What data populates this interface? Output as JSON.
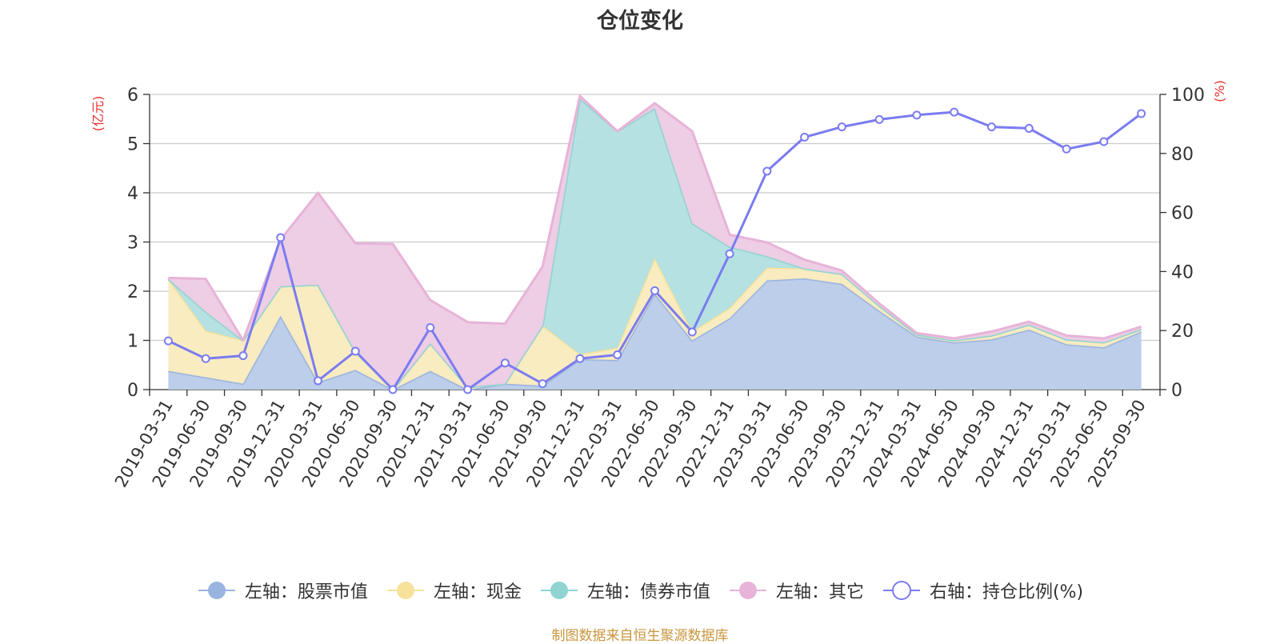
{
  "chart_data": {
    "type": "area",
    "title": "仓位变化",
    "left_axis_label": "(亿元)",
    "right_axis_label": "(%)",
    "ylim_left": [
      0,
      6
    ],
    "ylim_right": [
      0,
      100
    ],
    "yticks_left": [
      "0",
      "1",
      "2",
      "3",
      "4",
      "5",
      "6"
    ],
    "yticks_right": [
      "0",
      "20",
      "40",
      "60",
      "80",
      "100"
    ],
    "grid": true,
    "legend_position": "bottom",
    "categories": [
      "2019-03-31",
      "2019-06-30",
      "2019-09-30",
      "2019-12-31",
      "2020-03-31",
      "2020-06-30",
      "2020-09-30",
      "2020-12-31",
      "2021-03-31",
      "2021-06-30",
      "2021-09-30",
      "2021-12-31",
      "2022-03-31",
      "2022-06-30",
      "2022-09-30",
      "2022-12-31",
      "2023-03-31",
      "2023-06-30",
      "2023-09-30",
      "2023-12-31",
      "2024-03-31",
      "2024-06-30",
      "2024-09-30",
      "2024-12-31",
      "2025-03-31",
      "2025-06-30",
      "2025-09-30"
    ],
    "series": [
      {
        "name": "左轴：股票市值",
        "axis": "left",
        "kind": "stacked-area",
        "color": "#9ab4e0",
        "fill": "#b8cbe8",
        "values": [
          0.38,
          0.25,
          0.12,
          1.5,
          0.15,
          0.4,
          0.0,
          0.38,
          0.0,
          0.12,
          0.08,
          0.62,
          0.6,
          1.95,
          1.0,
          1.45,
          2.22,
          2.26,
          2.15,
          1.6,
          1.08,
          0.96,
          1.02,
          1.22,
          0.92,
          0.86,
          1.18
        ]
      },
      {
        "name": "左轴：现金",
        "axis": "left",
        "kind": "stacked-area",
        "color": "#f7e29c",
        "fill": "#f9ebbe",
        "values": [
          1.87,
          0.95,
          0.88,
          0.6,
          1.98,
          0.37,
          0.0,
          0.56,
          0.05,
          0.0,
          1.22,
          0.1,
          0.25,
          0.72,
          0.18,
          0.21,
          0.26,
          0.2,
          0.2,
          0.1,
          0.04,
          0.04,
          0.08,
          0.1,
          0.1,
          0.1,
          0.05
        ]
      },
      {
        "name": "左轴：债券市值",
        "axis": "left",
        "kind": "stacked-area",
        "color": "#8fd4d0",
        "fill": "#b2dfe0",
        "values": [
          0.0,
          0.38,
          0.0,
          0.0,
          0.0,
          0.0,
          0.0,
          0.0,
          0.0,
          0.0,
          0.0,
          5.2,
          4.4,
          3.05,
          2.2,
          1.24,
          0.23,
          0.0,
          0.0,
          0.0,
          0.0,
          0.0,
          0.0,
          0.0,
          0.0,
          0.0,
          0.0
        ]
      },
      {
        "name": "左轴：其它",
        "axis": "left",
        "kind": "stacked-area",
        "color": "#e7b3d8",
        "fill": "#edcbe4",
        "values": [
          0.02,
          0.67,
          0.0,
          0.95,
          1.87,
          2.2,
          2.96,
          0.88,
          1.32,
          1.22,
          1.2,
          0.05,
          0.0,
          0.1,
          1.87,
          0.25,
          0.28,
          0.18,
          0.07,
          0.05,
          0.03,
          0.04,
          0.08,
          0.06,
          0.08,
          0.08,
          0.05
        ]
      },
      {
        "name": "右轴：持仓比例(%)",
        "axis": "right",
        "kind": "line",
        "color": "#7b7cf0",
        "values": [
          16.5,
          10.5,
          11.5,
          51.5,
          3.0,
          13.0,
          0.0,
          21.0,
          0.0,
          9.0,
          2.0,
          10.5,
          11.8,
          33.5,
          19.5,
          46.0,
          74.0,
          85.5,
          89.0,
          91.5,
          93.0,
          94.0,
          89.0,
          88.5,
          81.5,
          84.0,
          93.5
        ]
      }
    ]
  },
  "footer": {
    "source_note": "制图数据来自恒生聚源数据库"
  }
}
